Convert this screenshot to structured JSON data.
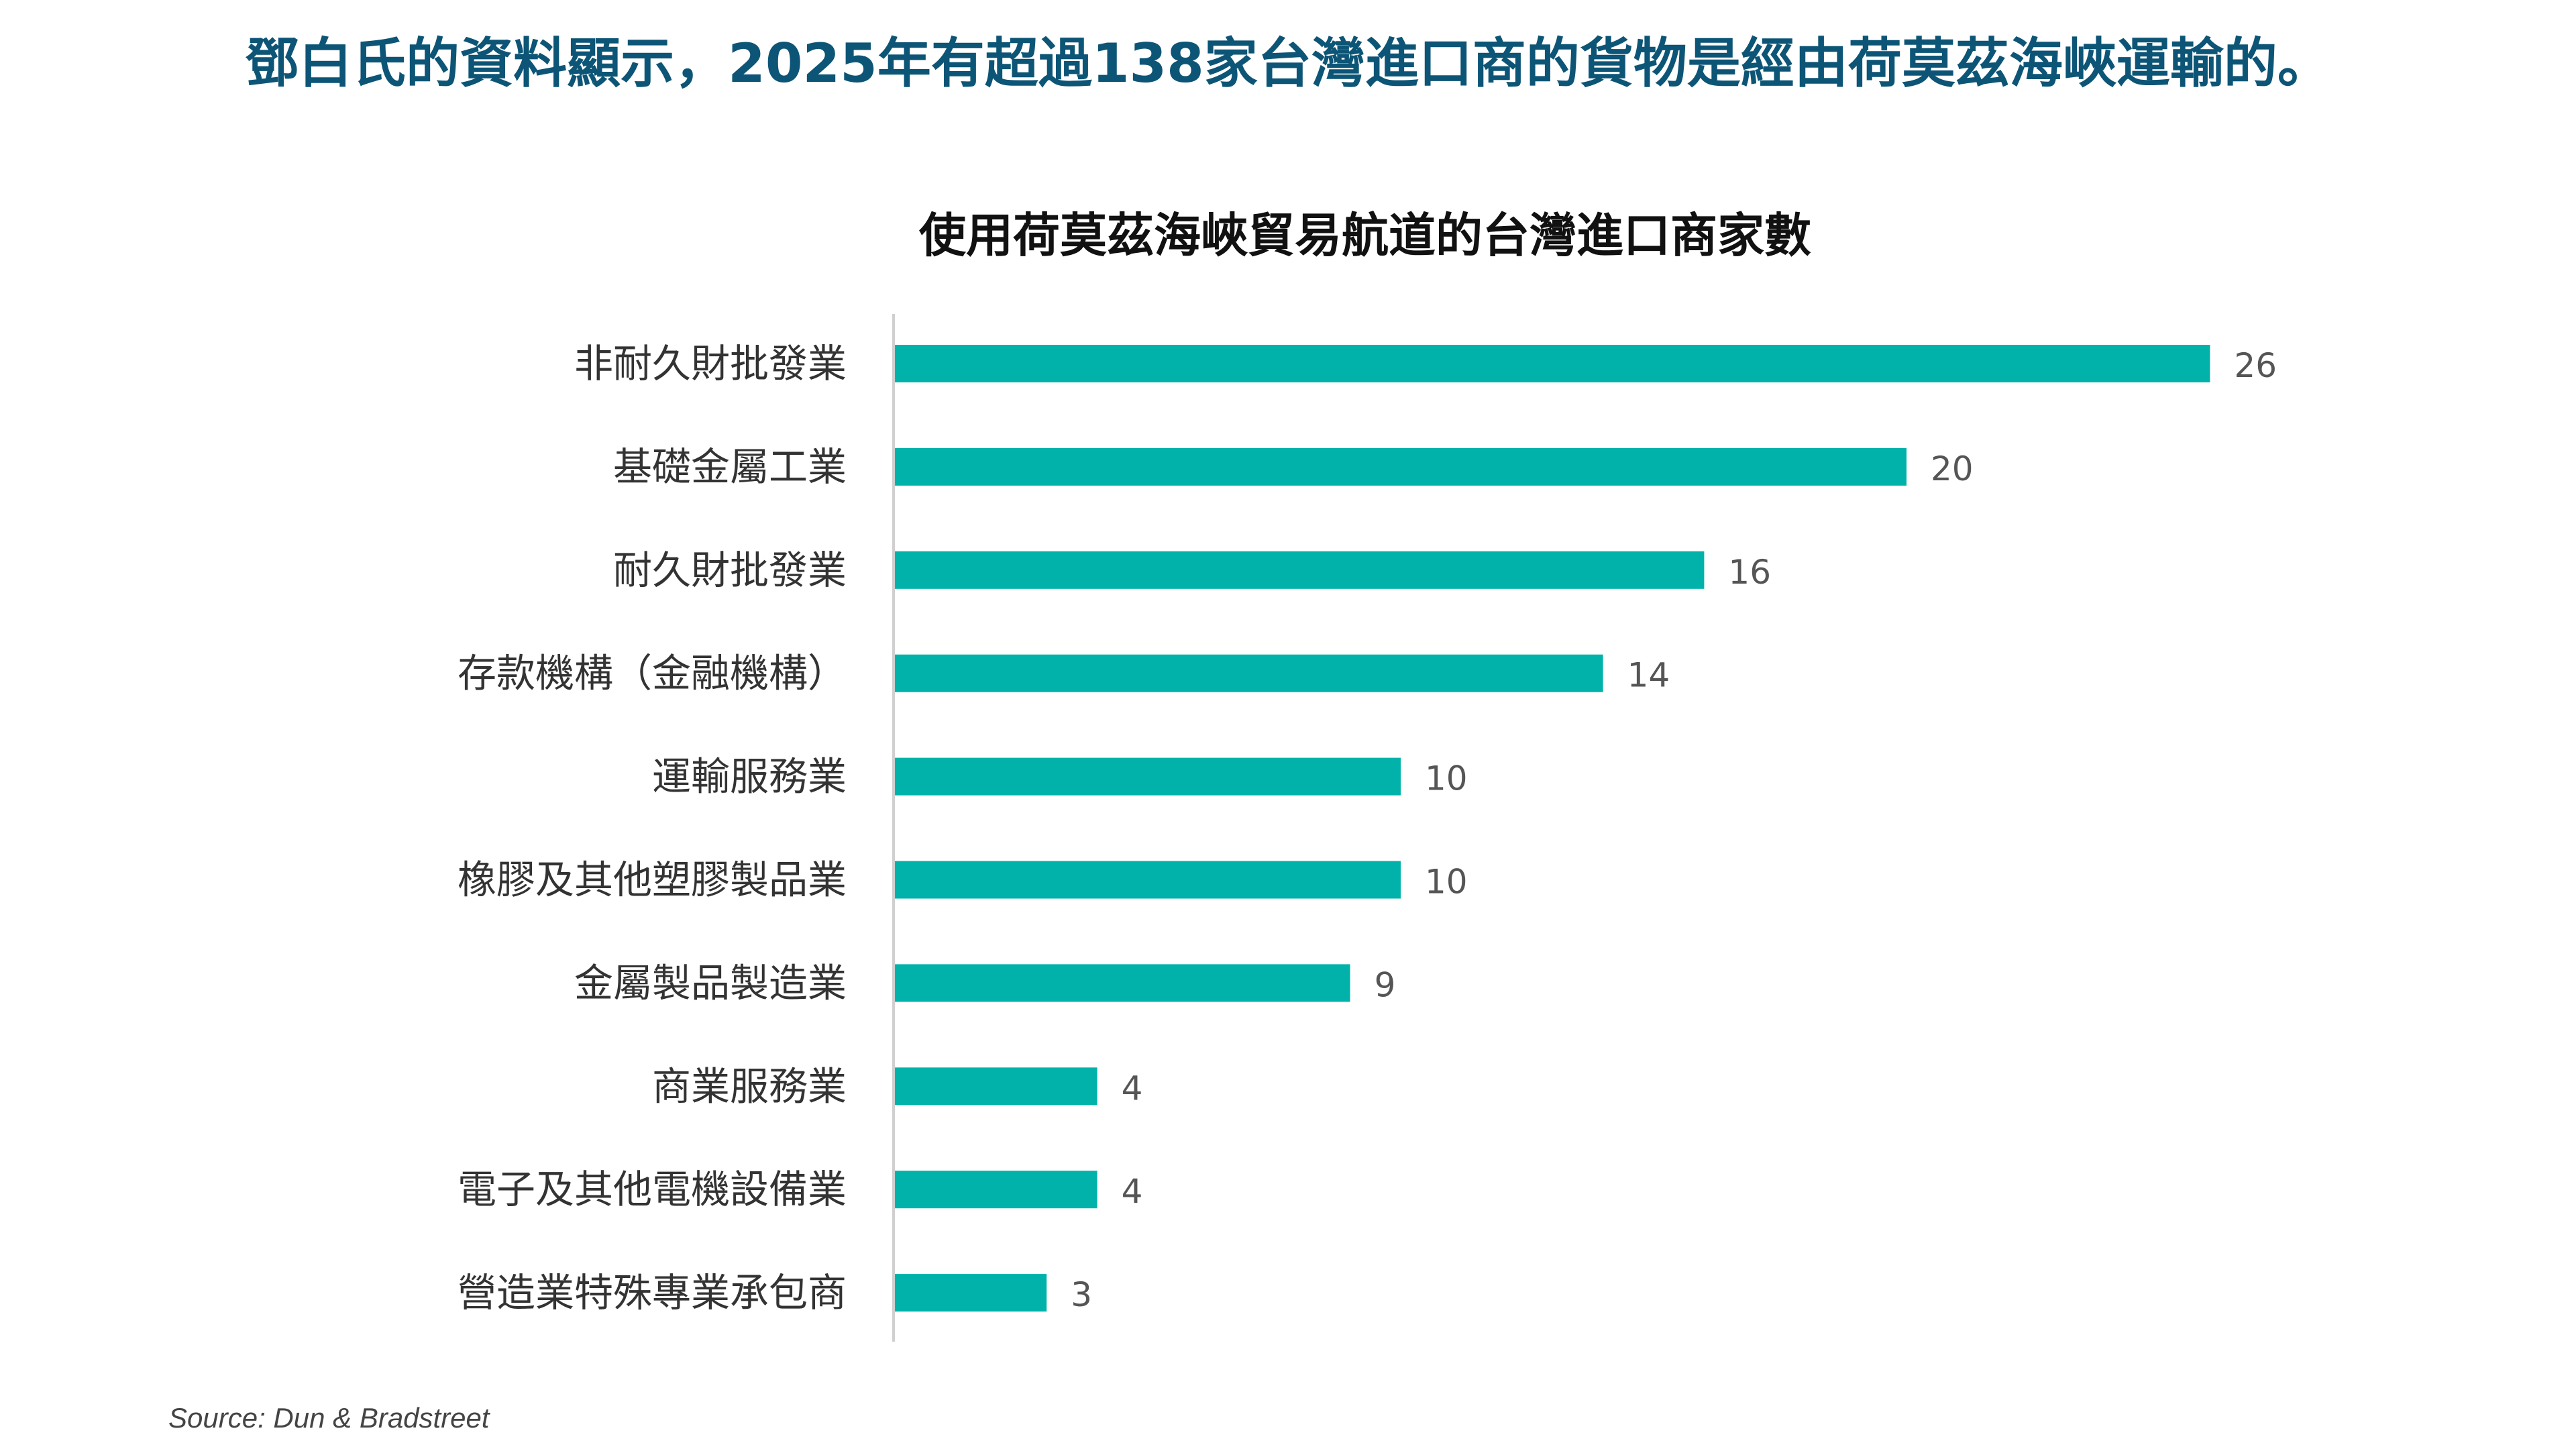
{
  "headline": "鄧白氏的資料顯示，2025年有超過138家台灣進口商的貨物是經由荷莫茲海峽運輸的。",
  "source": "Source: Dun & Bradstreet",
  "colors": {
    "headline": "#0d5576",
    "bar": "#00b2a9"
  },
  "chart_data": {
    "type": "bar",
    "orientation": "horizontal",
    "title": "使用荷莫茲海峽貿易航道的台灣進口商家數",
    "categories": [
      "非耐久財批發業",
      "基礎金屬工業",
      "耐久財批發業",
      "存款機構（金融機構）",
      "運輸服務業",
      "橡膠及其他塑膠製品業",
      "金屬製品製造業",
      "商業服務業",
      "電子及其他電機設備業",
      "營造業特殊專業承包商"
    ],
    "values": [
      26,
      20,
      16,
      14,
      10,
      10,
      9,
      4,
      4,
      3
    ],
    "xlabel": "",
    "ylabel": "",
    "xlim": [
      0,
      26
    ],
    "grid": false,
    "data_labels": true
  }
}
